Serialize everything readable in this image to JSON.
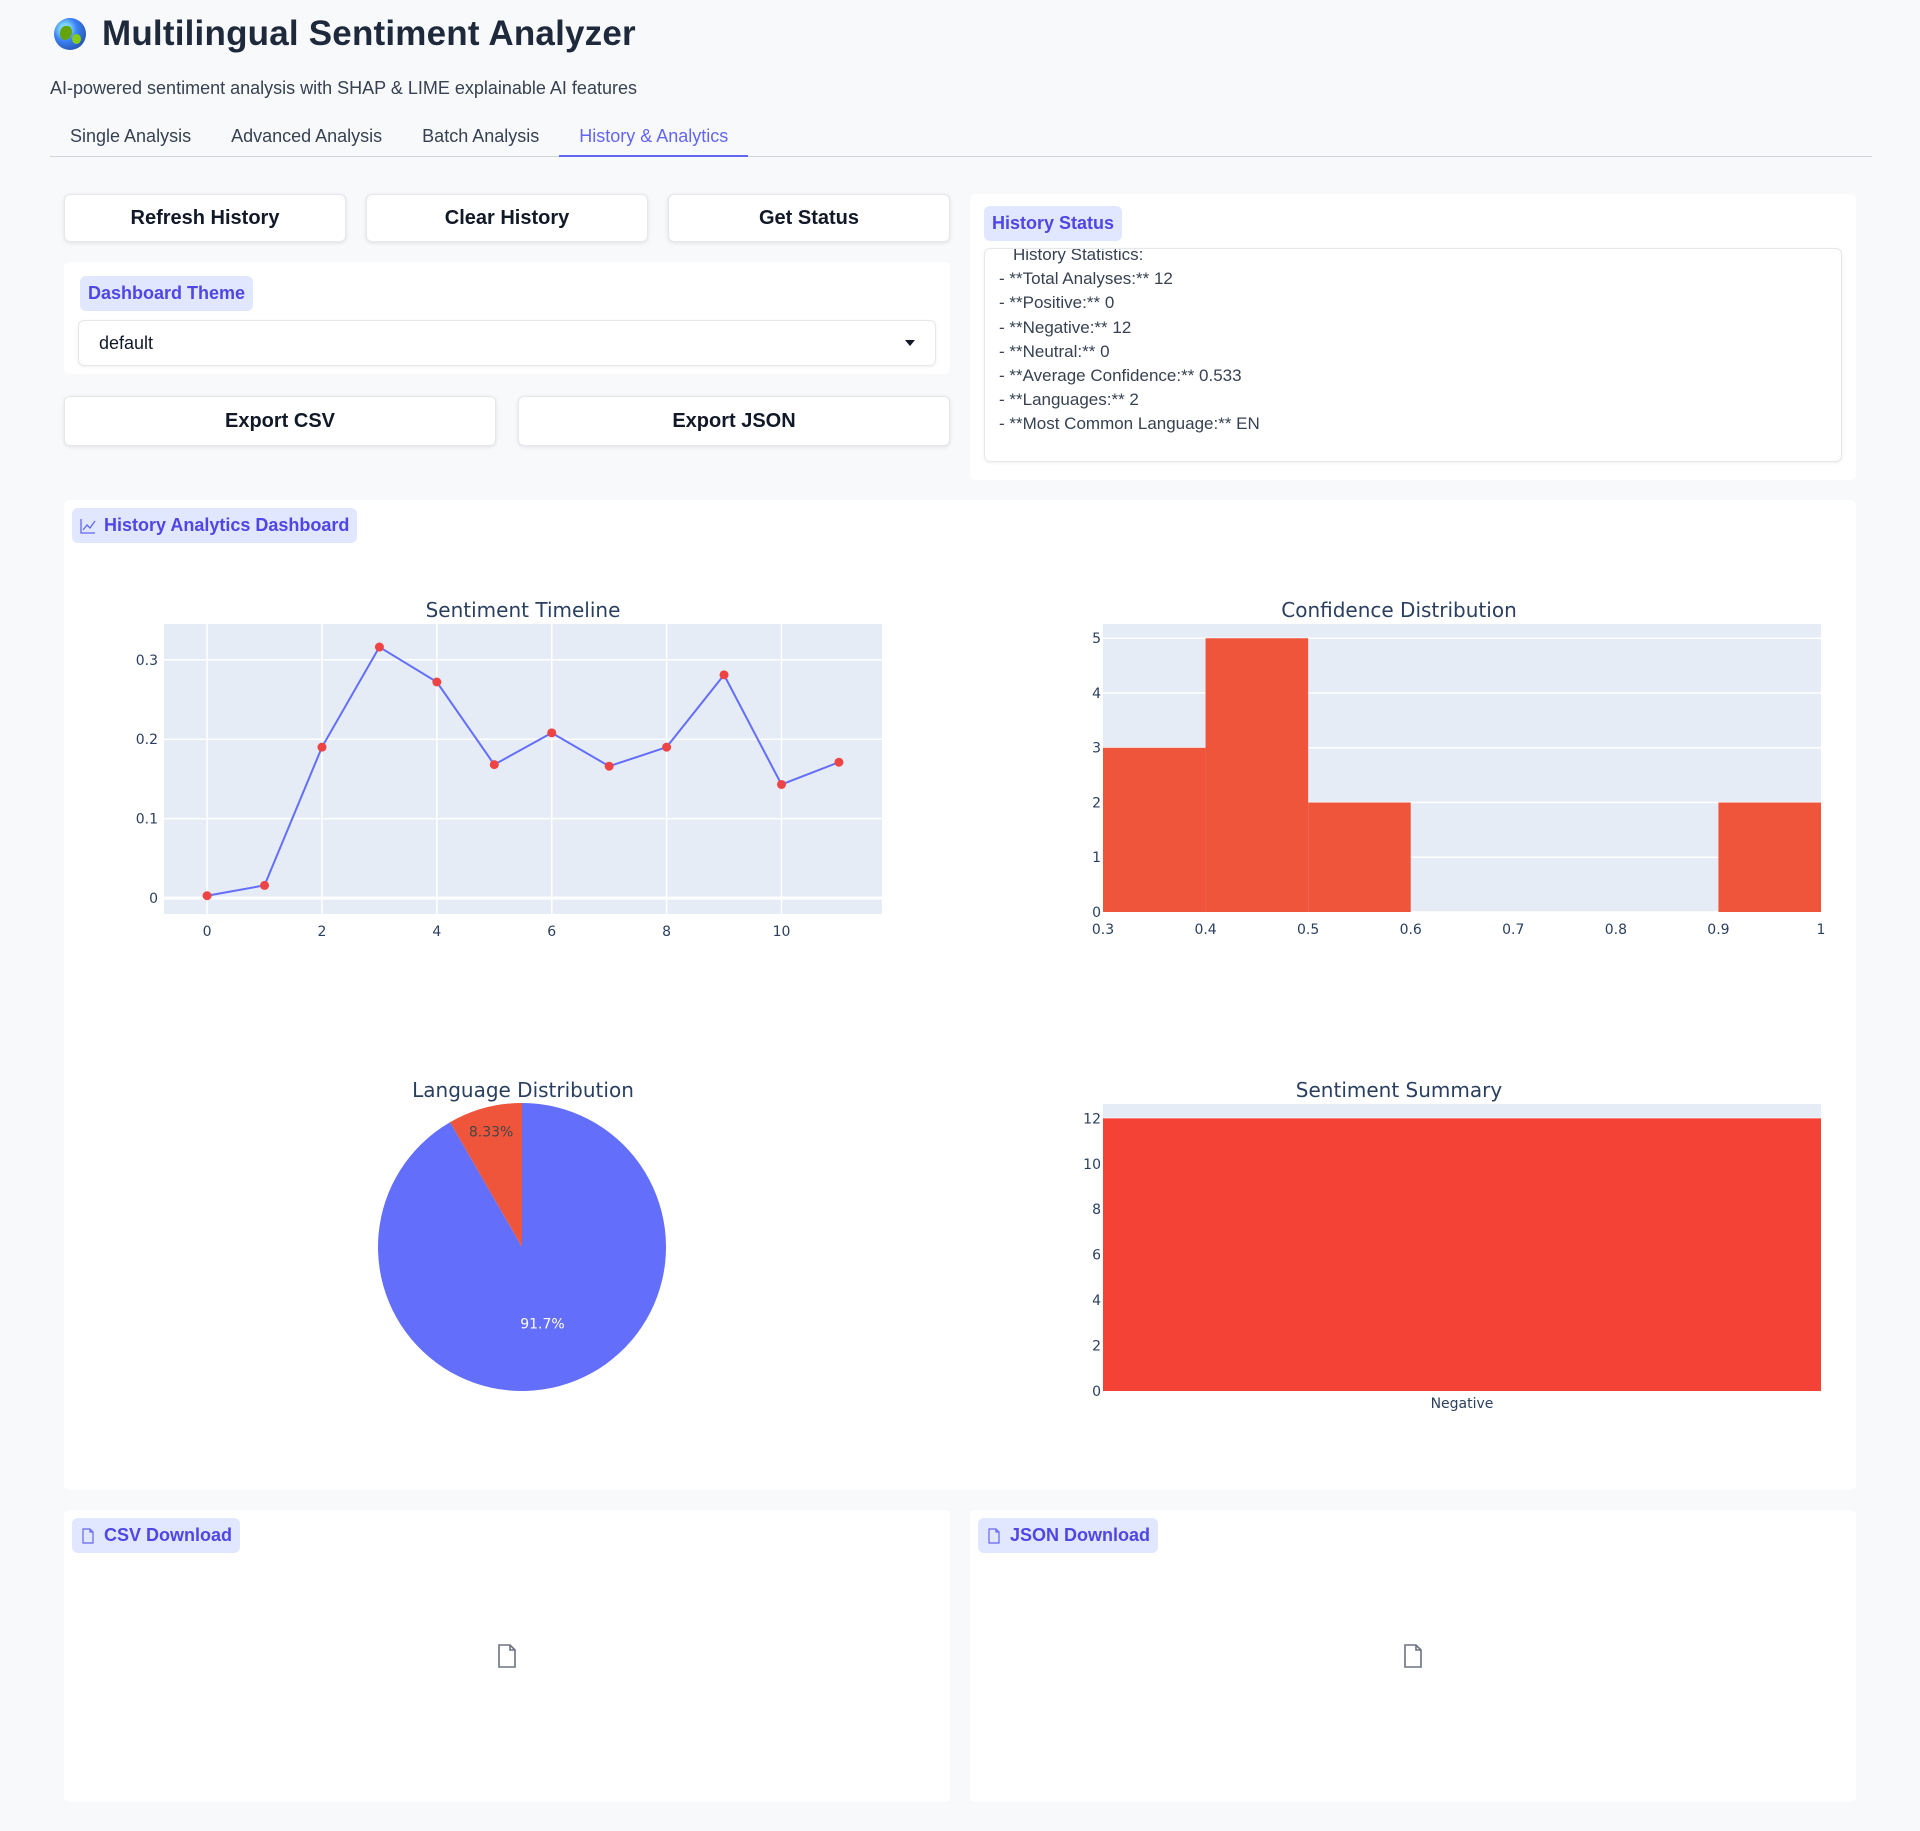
{
  "header": {
    "title": "Multilingual Sentiment Analyzer",
    "subtitle": "AI-powered sentiment analysis with SHAP & LIME explainable AI features"
  },
  "tabs": [
    {
      "label": "Single Analysis"
    },
    {
      "label": "Advanced Analysis"
    },
    {
      "label": "Batch Analysis"
    },
    {
      "label": "History & Analytics"
    }
  ],
  "active_tab": "History & Analytics",
  "controls": {
    "refresh_label": "Refresh History",
    "clear_label": "Clear History",
    "status_label": "Get Status",
    "theme_label": "Dashboard Theme",
    "theme_value": "default",
    "export_csv_label": "Export CSV",
    "export_json_label": "Export JSON"
  },
  "history_status": {
    "label": "History Status",
    "lines": [
      "History Statistics:",
      "- **Total Analyses:** 12",
      "- **Positive:** 0",
      "- **Negative:** 12",
      "- **Neutral:** 0",
      "- **Average Confidence:** 0.533",
      "- **Languages:** 2",
      "- **Most Common Language:** EN"
    ]
  },
  "dashboard": {
    "label": "History Analytics Dashboard"
  },
  "downloads": {
    "csv_label": "CSV Download",
    "json_label": "JSON Download"
  },
  "colors": {
    "accent": "#6366f1",
    "plot_bg": "#e5ecf6",
    "line": "#636efa",
    "marker": "#ef4444",
    "hist": "#ef553b",
    "bar": "#f44336"
  },
  "chart_data": [
    {
      "type": "line",
      "title": "Sentiment Timeline",
      "x": [
        0,
        1,
        2,
        3,
        4,
        5,
        6,
        7,
        8,
        9,
        10,
        11
      ],
      "y": [
        0.003,
        0.016,
        0.19,
        0.316,
        0.272,
        0.168,
        0.208,
        0.166,
        0.19,
        0.281,
        0.143,
        0.171
      ],
      "xlim": [
        -0.75,
        11.75
      ],
      "ylim": [
        -0.02,
        0.345
      ],
      "xticks": [
        0,
        2,
        4,
        6,
        8,
        10
      ],
      "yticks": [
        0,
        0.1,
        0.2,
        0.3
      ],
      "ytick_labels": [
        "0",
        "0.1",
        "0.2",
        "0.3"
      ],
      "grid": true
    },
    {
      "type": "bar",
      "title": "Confidence Distribution",
      "bins": [
        [
          0.3,
          0.4
        ],
        [
          0.4,
          0.5
        ],
        [
          0.5,
          0.6
        ],
        [
          0.6,
          0.7
        ],
        [
          0.7,
          0.8
        ],
        [
          0.8,
          0.9
        ],
        [
          0.9,
          1.0
        ]
      ],
      "values": [
        3,
        5,
        2,
        0,
        0,
        0,
        2
      ],
      "xlim": [
        0.3,
        1.0
      ],
      "ylim": [
        0,
        5.26
      ],
      "xticks": [
        0.3,
        0.4,
        0.5,
        0.6,
        0.7,
        0.8,
        0.9,
        1
      ],
      "xtick_labels": [
        "0.3",
        "0.4",
        "0.5",
        "0.6",
        "0.7",
        "0.8",
        "0.9",
        "1"
      ],
      "yticks": [
        0,
        1,
        2,
        3,
        4,
        5
      ],
      "grid": true
    },
    {
      "type": "pie",
      "title": "Language Distribution",
      "values": [
        91.7,
        8.33
      ],
      "labels": [
        "91.7%",
        "8.33%"
      ],
      "colors": [
        "#636efa",
        "#ef553b"
      ]
    },
    {
      "type": "bar",
      "title": "Sentiment Summary",
      "categories": [
        "Negative"
      ],
      "values": [
        12
      ],
      "ylim": [
        0,
        12.63
      ],
      "yticks": [
        0,
        2,
        4,
        6,
        8,
        10,
        12
      ],
      "grid": true
    }
  ]
}
